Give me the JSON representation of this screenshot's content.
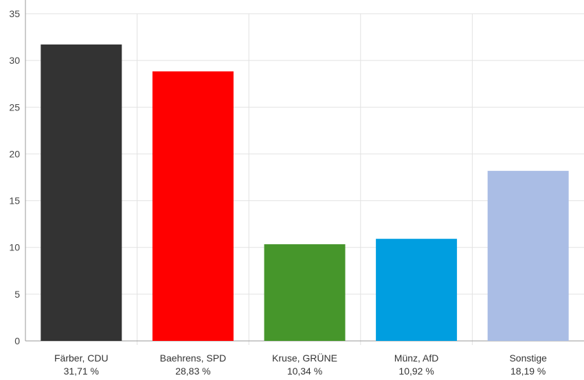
{
  "chart_data": {
    "type": "bar",
    "title": "",
    "xlabel": "",
    "ylabel": "",
    "ylim": [
      0,
      35
    ],
    "yticks": [
      0,
      5,
      10,
      15,
      20,
      25,
      30,
      35
    ],
    "grid": true,
    "categories": [
      "Färber, CDU",
      "Baehrens, SPD",
      "Kruse, GRÜNE",
      "Münz, AfD",
      "Sonstige"
    ],
    "values": [
      31.71,
      28.83,
      10.34,
      10.92,
      18.19
    ],
    "value_labels": [
      "31,71 %",
      "28,83 %",
      "10,34 %",
      "10,92 %",
      "18,19 %"
    ],
    "colors": [
      "#333333",
      "#ff0000",
      "#46962b",
      "#009ee0",
      "#aabde5"
    ]
  }
}
